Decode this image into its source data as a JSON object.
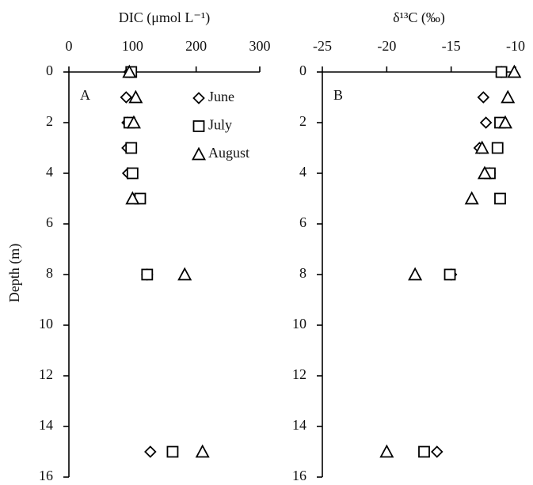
{
  "chart_data": [
    {
      "type": "scatter",
      "panel_label": "A",
      "xlabel": "DIC (μmol L⁻¹)",
      "ylabel": "Depth (m)",
      "xlim": [
        0,
        300
      ],
      "xticks": [
        0,
        100,
        200,
        300
      ],
      "ylim": [
        0,
        16
      ],
      "yticks": [
        0,
        2,
        4,
        6,
        8,
        10,
        12,
        14,
        16
      ],
      "y_inverted": true,
      "x_axis_position": "top",
      "legend": "upper right",
      "series": [
        {
          "name": "June",
          "marker": "diamond",
          "color": "#000000",
          "y": [
            0,
            1,
            2,
            3,
            4,
            5,
            8,
            15
          ],
          "x": [
            95,
            90,
            92,
            92,
            93,
            null,
            123,
            128
          ]
        },
        {
          "name": "July",
          "marker": "square",
          "color": "#000000",
          "y": [
            0,
            1,
            2,
            3,
            4,
            5,
            8,
            15
          ],
          "x": [
            98,
            null,
            95,
            98,
            100,
            112,
            123,
            163
          ]
        },
        {
          "name": "August",
          "marker": "triangle",
          "color": "#000000",
          "y": [
            0,
            1,
            2,
            3,
            4,
            5,
            8,
            15
          ],
          "x": [
            95,
            105,
            102,
            null,
            null,
            100,
            182,
            210
          ]
        }
      ]
    },
    {
      "type": "scatter",
      "panel_label": "B",
      "xlabel": "δ¹³C (‰)",
      "xlim": [
        -25,
        -10
      ],
      "xticks": [
        -25,
        -20,
        -15,
        -10
      ],
      "ylim": [
        0,
        16
      ],
      "yticks": [
        0,
        2,
        4,
        6,
        8,
        10,
        12,
        14,
        16
      ],
      "y_inverted": true,
      "x_axis_position": "top",
      "series": [
        {
          "marker": "diamond",
          "color": "#000000",
          "y": [
            0,
            1,
            2,
            3,
            4,
            5,
            8,
            15
          ],
          "x": [
            -11.1,
            -12.5,
            -12.3,
            -12.8,
            -12.0,
            null,
            -15.0,
            -16.1
          ]
        },
        {
          "marker": "square",
          "color": "#000000",
          "y": [
            0,
            1,
            2,
            3,
            4,
            5,
            8,
            15
          ],
          "x": [
            -11.1,
            null,
            -11.2,
            -11.4,
            -12.0,
            -11.2,
            -15.1,
            -17.1
          ]
        },
        {
          "marker": "triangle",
          "color": "#000000",
          "y": [
            0,
            1,
            2,
            3,
            4,
            5,
            8,
            15
          ],
          "x": [
            -10.1,
            -10.6,
            -10.8,
            -12.6,
            -12.4,
            -13.4,
            -17.8,
            -20.0
          ]
        }
      ]
    }
  ]
}
